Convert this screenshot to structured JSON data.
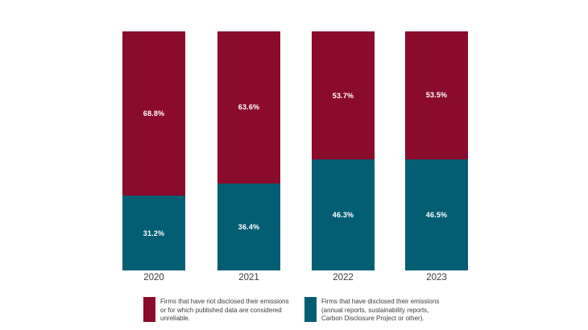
{
  "chart_data": {
    "type": "bar",
    "stacked": true,
    "title": "",
    "xlabel": "",
    "ylabel": "",
    "ylim": [
      0,
      100
    ],
    "grid": false,
    "legend_position": "bottom",
    "categories": [
      "2020",
      "2021",
      "2022",
      "2023"
    ],
    "series": [
      {
        "name": "Firms that have not disclosed their emissions or for which published data are considered unreliable.",
        "color": "#8A0B2B",
        "values": [
          68.8,
          63.6,
          53.7,
          53.5
        ],
        "labels": [
          "68.8%",
          "63.6%",
          "53.7%",
          "53.5%"
        ]
      },
      {
        "name": "Firms that have disclosed their emissions (annual reports, sustainability reports, Carbon Disclosure Project or other).",
        "color": "#035E73",
        "values": [
          31.2,
          36.4,
          46.3,
          46.5
        ],
        "labels": [
          "31.2%",
          "36.4%",
          "46.3%",
          "46.5%"
        ]
      }
    ]
  },
  "legend": {
    "items": [
      {
        "color": "#8A0B2B",
        "label": "Firms that have not disclosed their emissions or for which published data are considered unreliable.",
        "lines": [
          "Firms that have not disclosed their emissions",
          "or for which published data are considered",
          "unreliable."
        ]
      },
      {
        "color": "#035E73",
        "label": "Firms that have disclosed their emissions (annual reports, sustainability reports, Carbon Disclosure Project or other).",
        "lines": [
          "Firms that have disclosed their emissions",
          "(annual reports, sustainability reports,",
          "Carbon Disclosure Project or other)."
        ]
      }
    ]
  }
}
